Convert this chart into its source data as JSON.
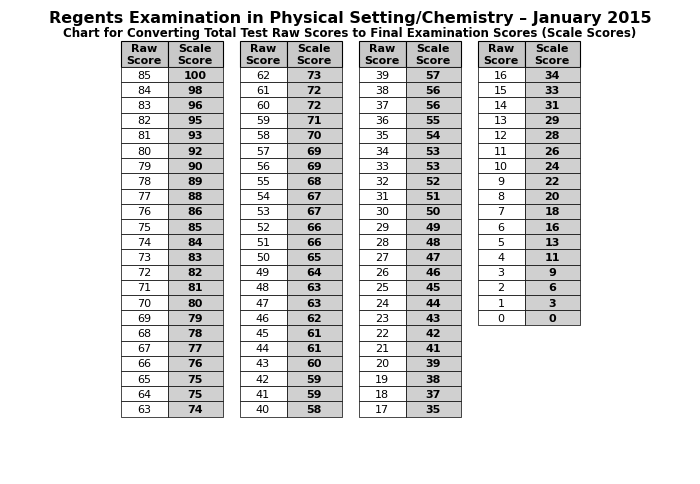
{
  "title": "Regents Examination in Physical Setting/Chemistry – January 2015",
  "subtitle": "Chart for Converting Total Test Raw Scores to Final Examination Scores (Scale Scores)",
  "columns": [
    {
      "raw": [
        85,
        84,
        83,
        82,
        81,
        80,
        79,
        78,
        77,
        76,
        75,
        74,
        73,
        72,
        71,
        70,
        69,
        68,
        67,
        66,
        65,
        64,
        63
      ],
      "scale": [
        100,
        98,
        96,
        95,
        93,
        92,
        90,
        89,
        88,
        86,
        85,
        84,
        83,
        82,
        81,
        80,
        79,
        78,
        77,
        76,
        75,
        75,
        74
      ]
    },
    {
      "raw": [
        62,
        61,
        60,
        59,
        58,
        57,
        56,
        55,
        54,
        53,
        52,
        51,
        50,
        49,
        48,
        47,
        46,
        45,
        44,
        43,
        42,
        41,
        40
      ],
      "scale": [
        73,
        72,
        72,
        71,
        70,
        69,
        69,
        68,
        67,
        67,
        66,
        66,
        65,
        64,
        63,
        63,
        62,
        61,
        61,
        60,
        59,
        59,
        58
      ]
    },
    {
      "raw": [
        39,
        38,
        37,
        36,
        35,
        34,
        33,
        32,
        31,
        30,
        29,
        28,
        27,
        26,
        25,
        24,
        23,
        22,
        21,
        20,
        19,
        18,
        17
      ],
      "scale": [
        57,
        56,
        56,
        55,
        54,
        53,
        53,
        52,
        51,
        50,
        49,
        48,
        47,
        46,
        45,
        44,
        43,
        42,
        41,
        39,
        38,
        37,
        35
      ]
    },
    {
      "raw": [
        16,
        15,
        14,
        13,
        12,
        11,
        10,
        9,
        8,
        7,
        6,
        5,
        4,
        3,
        2,
        1,
        0
      ],
      "scale": [
        34,
        33,
        31,
        29,
        28,
        26,
        24,
        22,
        20,
        18,
        16,
        13,
        11,
        9,
        6,
        3,
        0
      ]
    }
  ],
  "bg_color": "#ffffff",
  "header_bg": "#c8c8c8",
  "row_bg_white": "#ffffff",
  "row_bg_gray": "#d0d0d0",
  "border_color": "#000000",
  "title_fontsize": 11.5,
  "subtitle_fontsize": 8.5,
  "header_fontsize": 8,
  "cell_fontsize": 8,
  "fig_width": 7.0,
  "fig_height": 4.85,
  "dpi": 100
}
